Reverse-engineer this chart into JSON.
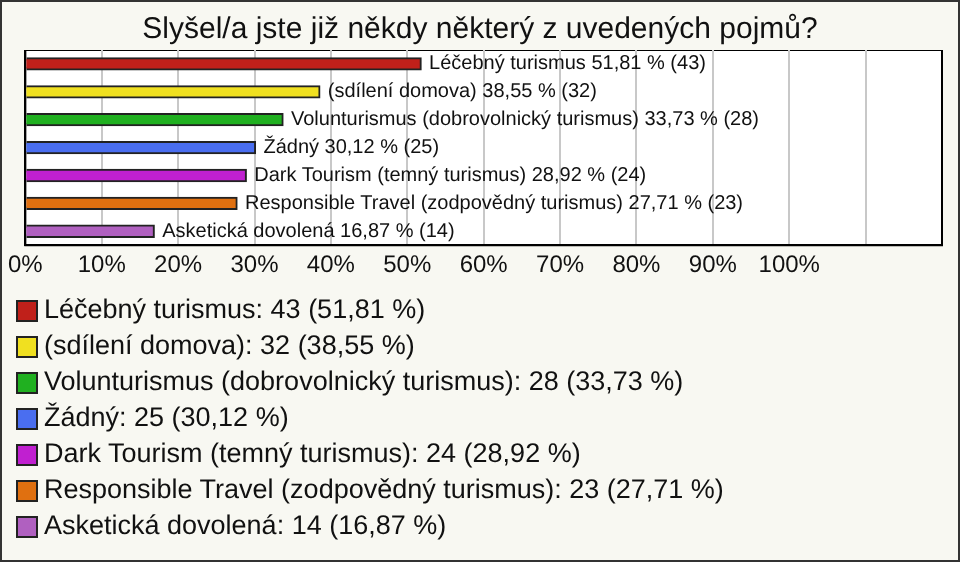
{
  "chart_data": {
    "type": "bar",
    "orientation": "horizontal",
    "title": "Slyšel/a jste již někdy některý z uvedených pojmů?",
    "categories": [
      null,
      null,
      null,
      null,
      null,
      null,
      null
    ],
    "series": [
      {
        "name": "Léčebný turismus: 43 (51,81 %)",
        "color": "#c0201a",
        "values": [
          51.81,
          null,
          null,
          null,
          null,
          null,
          null
        ],
        "value_labels": [
          "Léčebný turismus 51,81 % (43)",
          null,
          null,
          null,
          null,
          null,
          null
        ]
      },
      {
        "name": "(sdílení domova): 32 (38,55 %)",
        "color": "#f0e020",
        "values": [
          null,
          38.55,
          null,
          null,
          null,
          null,
          null
        ],
        "value_labels": [
          null,
          "(sdílení domova) 38,55 % (32)",
          null,
          null,
          null,
          null,
          null
        ]
      },
      {
        "name": "Volunturismus (dobrovolnický turismus): 28 (33,73 %)",
        "color": "#20b020",
        "values": [
          null,
          null,
          33.73,
          null,
          null,
          null,
          null
        ],
        "value_labels": [
          null,
          null,
          "Volunturismus (dobrovolnický turismus) 33,73 % (28)",
          null,
          null,
          null,
          null
        ]
      },
      {
        "name": "Žádný: 25 (30,12 %)",
        "color": "#4a6ef0",
        "values": [
          null,
          null,
          null,
          30.12,
          null,
          null,
          null
        ],
        "value_labels": [
          null,
          null,
          null,
          "Žádný 30,12 % (25)",
          null,
          null,
          null
        ]
      },
      {
        "name": "Dark Tourism (temný turismus): 24 (28,92 %)",
        "color": "#c020d0",
        "values": [
          null,
          null,
          null,
          null,
          28.92,
          null,
          null
        ],
        "value_labels": [
          null,
          null,
          null,
          null,
          "Dark Tourism (temný turismus) 28,92 % (24)",
          null,
          null
        ]
      },
      {
        "name": "Responsible Travel (zodpovědný turismus): 23 (27,71 %)",
        "color": "#e07010",
        "values": [
          null,
          null,
          null,
          null,
          null,
          27.71,
          null
        ],
        "value_labels": [
          null,
          null,
          null,
          null,
          null,
          "Responsible Travel (zodpovědný turismus) 27,71 % (23)",
          null
        ]
      },
      {
        "name": "Asketická dovolená: 14 (16,87 %)",
        "color": "#b060c0",
        "values": [
          null,
          null,
          null,
          null,
          null,
          null,
          16.87
        ],
        "value_labels": [
          null,
          null,
          null,
          null,
          null,
          null,
          "Asketická dovolená 16,87 % (14)"
        ]
      }
    ],
    "xlim": [
      0,
      120
    ],
    "xticks": [
      {
        "value": 0,
        "label": "0%"
      },
      {
        "value": 10,
        "label": "10%"
      },
      {
        "value": 20,
        "label": "20%"
      },
      {
        "value": 30,
        "label": "30%"
      },
      {
        "value": 40,
        "label": "40%"
      },
      {
        "value": 50,
        "label": "50%"
      },
      {
        "value": 60,
        "label": "60%"
      },
      {
        "value": 70,
        "label": "70%"
      },
      {
        "value": 80,
        "label": "80%"
      },
      {
        "value": 90,
        "label": "90%"
      },
      {
        "value": 100,
        "label": "100%"
      },
      {
        "value": 110,
        "label": null
      }
    ],
    "grid": "x",
    "legend": "bottom",
    "tick_labels": "x"
  }
}
